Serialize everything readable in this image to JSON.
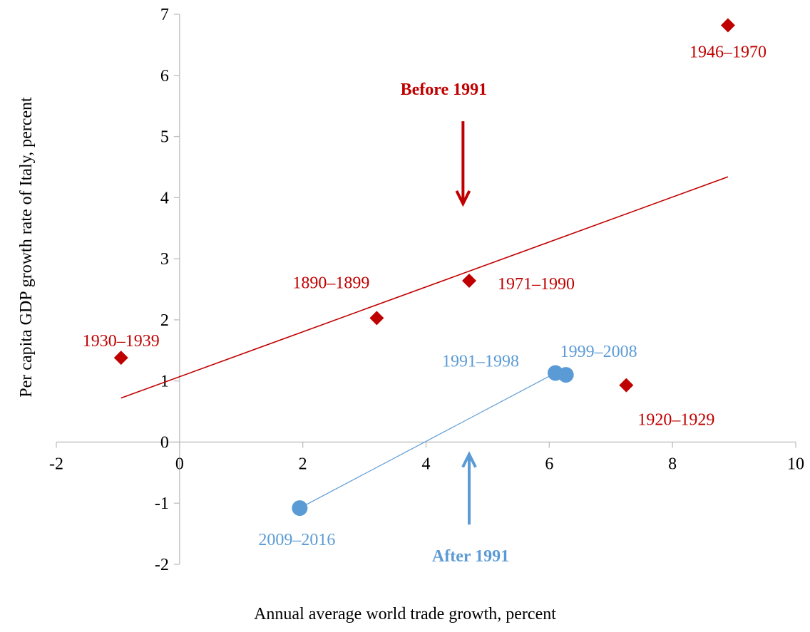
{
  "chart_data": {
    "type": "scatter",
    "xlabel": "Annual average world trade growth, percent",
    "ylabel": "Per capita GDP growth rate of Italy, percent",
    "xlim": [
      -2,
      10
    ],
    "ylim": [
      -2,
      7
    ],
    "x_ticks": [
      "-2",
      "0",
      "2",
      "4",
      "6",
      "8",
      "10"
    ],
    "y_ticks": [
      "-2",
      "-1",
      "0",
      "1",
      "2",
      "3",
      "4",
      "5",
      "6",
      "7"
    ],
    "grid": false,
    "colors": {
      "before": "#c00000",
      "after": "#5b9bd5"
    },
    "series": [
      {
        "key": "before",
        "marker": "diamond",
        "points": [
          {
            "label": "1930–1939",
            "x": -0.95,
            "y": 1.38
          },
          {
            "label": "1890–1899",
            "x": 3.2,
            "y": 2.03
          },
          {
            "label": "1971–1990",
            "x": 4.7,
            "y": 2.64
          },
          {
            "label": "1920–1929",
            "x": 7.25,
            "y": 0.93
          },
          {
            "label": "1946–1970",
            "x": 8.9,
            "y": 6.82
          }
        ],
        "trendline": {
          "x": [
            -0.95,
            8.9
          ],
          "y": [
            0.72,
            4.34
          ]
        }
      },
      {
        "key": "after",
        "marker": "circle",
        "points": [
          {
            "label": "2009–2016",
            "x": 1.95,
            "y": -1.08
          },
          {
            "label": "1991–1998",
            "x": 6.1,
            "y": 1.13
          },
          {
            "label": "1999–2008",
            "x": 6.27,
            "y": 1.1
          }
        ],
        "trendline": {
          "x": [
            1.95,
            6.1
          ],
          "y": [
            -1.08,
            1.13
          ]
        }
      }
    ],
    "annotations": {
      "before": {
        "text": "Before 1991",
        "x": 4.6,
        "arrow_from": 5.25,
        "arrow_to": 3.9
      },
      "after": {
        "text": "After 1991",
        "x": 4.7,
        "arrow_from": -1.35,
        "arrow_to": -0.2
      }
    }
  }
}
